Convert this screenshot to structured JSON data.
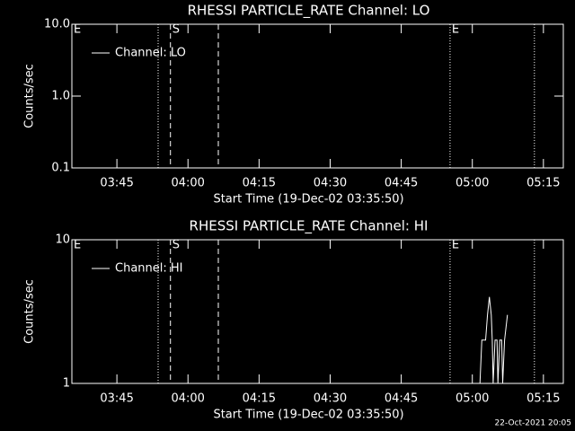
{
  "footer": "22-Oct-2021 20:05",
  "chart_data": [
    {
      "type": "line",
      "title": "RHESSI PARTICLE_RATE Channel: LO",
      "xlabel": "Start Time (19-Dec-02 03:35:50)",
      "ylabel": "Counts/sec",
      "log_y": true,
      "xlim": [
        215.5,
        319.2
      ],
      "xticks": [
        {
          "value": 225,
          "label": "03:45"
        },
        {
          "value": 240,
          "label": "04:00"
        },
        {
          "value": 255,
          "label": "04:15"
        },
        {
          "value": 270,
          "label": "04:30"
        },
        {
          "value": 285,
          "label": "04:45"
        },
        {
          "value": 300,
          "label": "05:00"
        },
        {
          "value": 315,
          "label": "05:15"
        }
      ],
      "ylim": [
        0.1,
        10
      ],
      "yticks": [
        0.1,
        {
          "value": 1,
          "label": "1.0"
        },
        {
          "value": 10,
          "label": "10.0"
        }
      ],
      "markers": [
        {
          "x": 233.7,
          "style": "dotted"
        },
        {
          "x": 236.3,
          "style": "dashed"
        },
        {
          "x": 246.4,
          "style": "dashed"
        },
        {
          "x": 295.3,
          "style": "dotted"
        },
        {
          "x": 313.1,
          "style": "dotted"
        }
      ],
      "annotations": [
        {
          "text": "E",
          "x": 215.5
        },
        {
          "text": "S",
          "x": 236.3
        },
        {
          "text": "E",
          "x": 295.3
        }
      ],
      "series": [
        {
          "name": "Channel: LO",
          "color": "#ffffff",
          "x": [],
          "values": []
        }
      ]
    },
    {
      "type": "line",
      "title": "RHESSI PARTICLE_RATE Channel: HI",
      "xlabel": "Start Time (19-Dec-02 03:35:50)",
      "ylabel": "Counts/sec",
      "log_y": true,
      "xlim": [
        215.5,
        319.2
      ],
      "xticks": [
        {
          "value": 225,
          "label": "03:45"
        },
        {
          "value": 240,
          "label": "04:00"
        },
        {
          "value": 255,
          "label": "04:15"
        },
        {
          "value": 270,
          "label": "04:30"
        },
        {
          "value": 285,
          "label": "04:45"
        },
        {
          "value": 300,
          "label": "05:00"
        },
        {
          "value": 315,
          "label": "05:15"
        }
      ],
      "ylim": [
        1,
        10
      ],
      "yticks": [
        1,
        10
      ],
      "markers": [
        {
          "x": 233.7,
          "style": "dotted"
        },
        {
          "x": 236.3,
          "style": "dashed"
        },
        {
          "x": 246.4,
          "style": "dashed"
        },
        {
          "x": 295.3,
          "style": "dotted"
        },
        {
          "x": 313.1,
          "style": "dotted"
        }
      ],
      "annotations": [
        {
          "text": "E",
          "x": 215.5
        },
        {
          "text": "S",
          "x": 236.3
        },
        {
          "text": "E",
          "x": 295.3
        }
      ],
      "series": [
        {
          "name": "Channel: HI",
          "color": "#ffffff",
          "x": [
            301.6,
            302.0,
            302.8,
            303.2,
            303.6,
            304.0,
            304.2,
            304.4,
            304.8,
            305.2,
            305.4,
            305.8,
            306.2,
            306.4,
            306.8,
            307.4
          ],
          "values": [
            1,
            2,
            2,
            3,
            4,
            3,
            2,
            1,
            2,
            2,
            1,
            2,
            2,
            1,
            2,
            3
          ]
        }
      ]
    }
  ]
}
